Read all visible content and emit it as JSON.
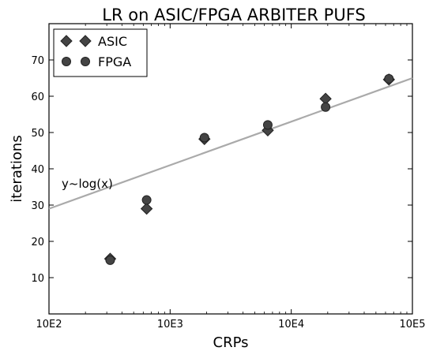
{
  "chart_data": {
    "type": "scatter",
    "title": "LR on ASIC/FPGA ARBITER PUFS",
    "xlabel": "CRPs",
    "ylabel": "iterations",
    "x_scale": "log",
    "xlim": [
      100,
      100000
    ],
    "ylim": [
      0,
      80
    ],
    "x_ticks": [
      {
        "value": 100,
        "label": "10E2"
      },
      {
        "value": 1000,
        "label": "10E3"
      },
      {
        "value": 10000,
        "label": "10E4"
      },
      {
        "value": 100000,
        "label": "10E5"
      }
    ],
    "y_ticks": [
      10,
      20,
      30,
      40,
      50,
      60,
      70
    ],
    "grid": false,
    "legend_position": "top-left",
    "series": [
      {
        "name": "ASIC",
        "marker": "diamond",
        "color": "#444444",
        "x": [
          320,
          640,
          1920,
          6400,
          19200,
          64000
        ],
        "y": [
          15.2,
          29.0,
          48.2,
          50.6,
          59.3,
          64.6
        ]
      },
      {
        "name": "FPGA",
        "marker": "circle",
        "color": "#444444",
        "x": [
          320,
          640,
          1920,
          6400,
          19200,
          64000
        ],
        "y": [
          14.8,
          31.4,
          48.6,
          52.1,
          57.0,
          64.8
        ]
      }
    ],
    "fit_line": {
      "label": "y~log(x)",
      "color": "#aaaaaa",
      "x": [
        100,
        100000
      ],
      "y": [
        29.0,
        65.0
      ]
    }
  }
}
